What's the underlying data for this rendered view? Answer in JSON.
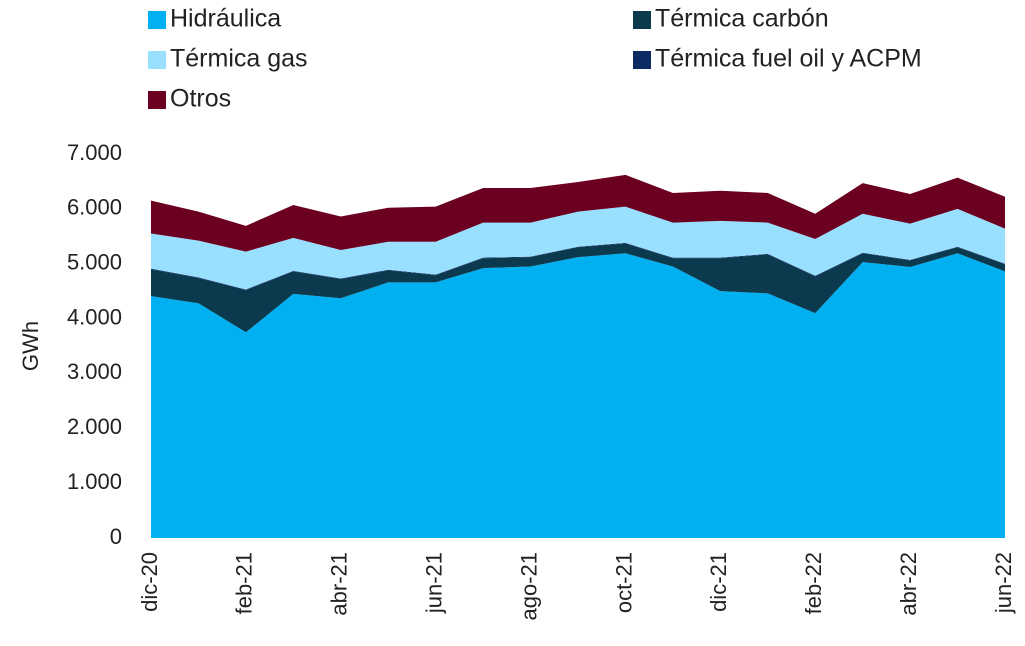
{
  "chart_data": {
    "type": "area",
    "ylabel": "GWh",
    "categories": [
      "dic-20",
      null,
      "feb-21",
      null,
      "abr-21",
      null,
      "jun-21",
      null,
      "ago-21",
      null,
      "oct-21",
      null,
      "dic-21",
      null,
      "feb-22",
      null,
      "abr-22",
      null,
      "jun-22"
    ],
    "series": [
      {
        "name": "Hidráulica",
        "color": "#00b0f0",
        "values": [
          4410,
          4280,
          3750,
          4450,
          4370,
          4660,
          4660,
          4920,
          4950,
          5120,
          5190,
          4950,
          4500,
          4460,
          4100,
          5030,
          4940,
          5190,
          4860
        ]
      },
      {
        "name": "Térmica carbón",
        "color": "#0b3a4e",
        "values": [
          490,
          460,
          770,
          410,
          350,
          220,
          130,
          180,
          170,
          180,
          180,
          150,
          600,
          710,
          670,
          160,
          120,
          110,
          130
        ]
      },
      {
        "name": "Térmica fuel oil y ACPM",
        "color": "#0d2b63",
        "values": [
          10,
          10,
          10,
          10,
          10,
          10,
          10,
          10,
          10,
          10,
          10,
          10,
          10,
          10,
          10,
          10,
          10,
          10,
          10
        ]
      },
      {
        "name": "Térmica gas",
        "color": "#99e0ff",
        "values": [
          640,
          670,
          690,
          600,
          520,
          510,
          600,
          640,
          620,
          640,
          660,
          640,
          670,
          570,
          670,
          710,
          660,
          690,
          640
        ]
      },
      {
        "name": "Otros",
        "color": "#6b0020",
        "values": [
          600,
          530,
          470,
          600,
          610,
          620,
          640,
          630,
          630,
          540,
          580,
          540,
          550,
          540,
          460,
          560,
          540,
          570,
          580
        ]
      }
    ],
    "legend_order": [
      0,
      1,
      3,
      2,
      4
    ],
    "ylim": [
      0,
      7000
    ],
    "yticks": [
      0,
      {
        "value": 1000,
        "label": "1.000"
      },
      {
        "value": 2000,
        "label": "2.000"
      },
      {
        "value": 3000,
        "label": "3.000"
      },
      {
        "value": 4000,
        "label": "4.000"
      },
      {
        "value": 5000,
        "label": "5.000"
      },
      {
        "value": 6000,
        "label": "6.000"
      },
      {
        "value": 7000,
        "label": "7.000"
      }
    ],
    "grid": false
  }
}
